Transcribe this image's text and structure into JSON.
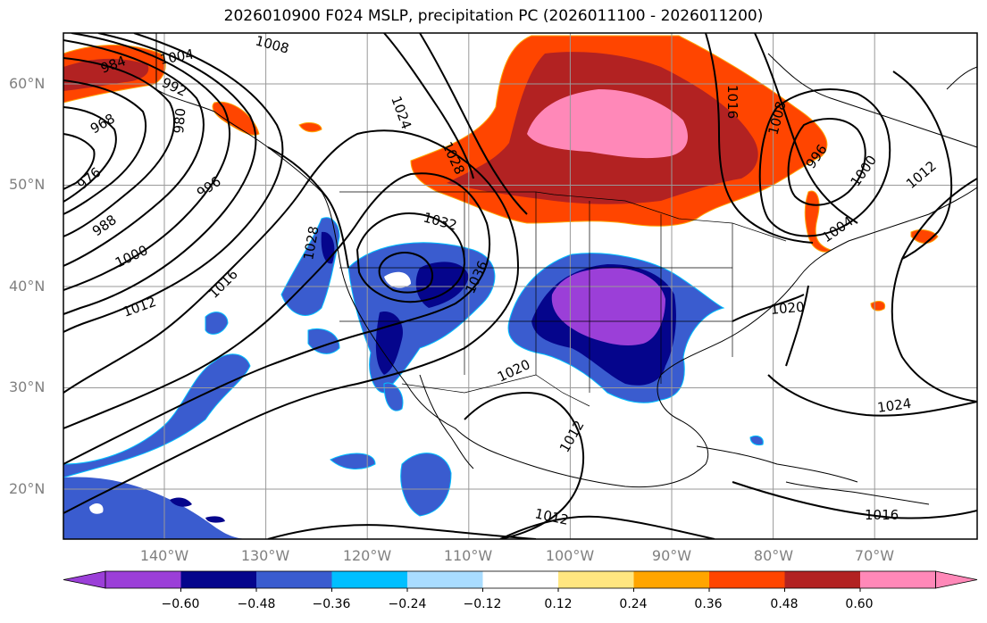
{
  "title": "2026010900 F024 MSLP, precipitation PC (2026011100 - 2026011200)",
  "latitudes": [
    {
      "label": "60°N",
      "value": 60
    },
    {
      "label": "50°N",
      "value": 50
    },
    {
      "label": "40°N",
      "value": 40
    },
    {
      "label": "30°N",
      "value": 30
    },
    {
      "label": "20°N",
      "value": 20
    }
  ],
  "longitudes": [
    {
      "label": "140°W",
      "value": -140
    },
    {
      "label": "130°W",
      "value": -130
    },
    {
      "label": "120°W",
      "value": -120
    },
    {
      "label": "110°W",
      "value": -110
    },
    {
      "label": "100°W",
      "value": -100
    },
    {
      "label": "90°W",
      "value": -90
    },
    {
      "label": "80°W",
      "value": -80
    },
    {
      "label": "70°W",
      "value": -70
    }
  ],
  "colorbar": {
    "colors": [
      "#9b3fd8",
      "#05058c",
      "#3a5ccf",
      "#00bfff",
      "#a9dcff",
      "#ffffff",
      "#ffe680",
      "#ffa500",
      "#ff4500",
      "#b22222",
      "#ff88b8"
    ],
    "ticks": [
      "−0.60",
      "−0.48",
      "−0.36",
      "−0.24",
      "−0.12",
      "0.12",
      "0.24",
      "0.36",
      "0.48",
      "0.60"
    ]
  },
  "isobar_labels": [
    "1004",
    "1008",
    "984",
    "992",
    "980",
    "968",
    "976",
    "988",
    "996",
    "1000",
    "1012",
    "1016",
    "1024",
    "1028",
    "1032",
    "1036",
    "1020",
    "1012",
    "1016",
    "1008",
    "996",
    "1000",
    "1004",
    "1012",
    "1024",
    "1016",
    "1012",
    "1028",
    "1020"
  ]
}
